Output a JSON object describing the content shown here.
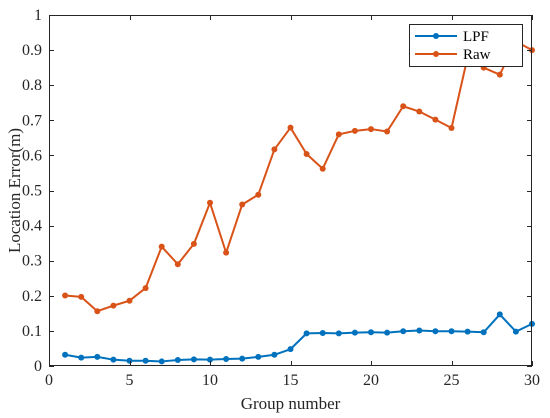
{
  "chart_data": {
    "type": "line",
    "title": "",
    "xlabel": "Group number",
    "ylabel": "Location Error(m)",
    "xlim": [
      0,
      30
    ],
    "ylim": [
      0,
      1
    ],
    "xticks": [
      "0",
      "5",
      "10",
      "15",
      "20",
      "25",
      "30"
    ],
    "yticks": [
      "0",
      "0.1",
      "0.2",
      "0.3",
      "0.4",
      "0.5",
      "0.6",
      "0.7",
      "0.8",
      "0.9",
      "1"
    ],
    "grid": false,
    "legend_position": "top-right",
    "x": [
      1,
      2,
      3,
      4,
      5,
      6,
      7,
      8,
      9,
      10,
      11,
      12,
      13,
      14,
      15,
      16,
      17,
      18,
      19,
      20,
      21,
      22,
      23,
      24,
      25,
      26,
      27,
      28,
      29,
      30
    ],
    "series": [
      {
        "name": "LPF",
        "color": "#0072bd",
        "values": [
          0.032,
          0.024,
          0.026,
          0.018,
          0.015,
          0.015,
          0.013,
          0.017,
          0.019,
          0.018,
          0.02,
          0.021,
          0.026,
          0.032,
          0.048,
          0.093,
          0.094,
          0.093,
          0.095,
          0.096,
          0.095,
          0.099,
          0.101,
          0.099,
          0.099,
          0.098,
          0.096,
          0.147,
          0.098,
          0.12
        ]
      },
      {
        "name": "Raw",
        "color": "#d95319",
        "values": [
          0.201,
          0.197,
          0.156,
          0.172,
          0.186,
          0.222,
          0.34,
          0.29,
          0.348,
          0.465,
          0.323,
          0.46,
          0.488,
          0.617,
          0.679,
          0.604,
          0.562,
          0.66,
          0.67,
          0.675,
          0.668,
          0.74,
          0.725,
          0.702,
          0.678,
          0.88,
          0.85,
          0.83,
          0.925,
          0.9
        ]
      }
    ]
  }
}
